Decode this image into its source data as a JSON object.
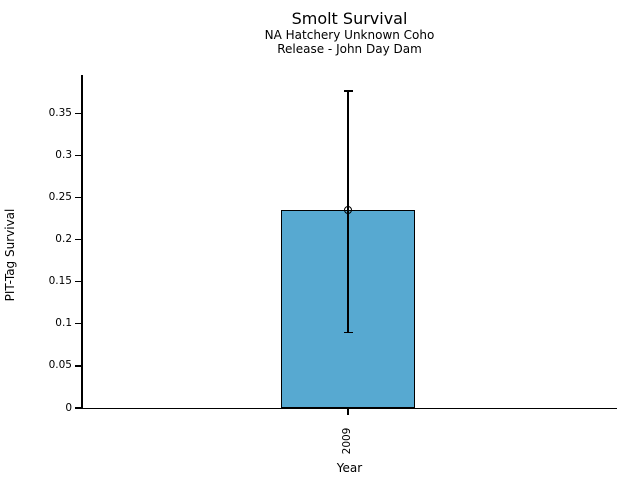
{
  "chart_data": {
    "type": "bar",
    "title": "Smolt Survival",
    "subtitle1": "NA Hatchery Unknown Coho",
    "subtitle2": "Release - John Day Dam",
    "xlabel": "Year",
    "ylabel": "PIT-Tag Survival",
    "categories": [
      "2009"
    ],
    "values": [
      0.235
    ],
    "error_bars": [
      {
        "low": 0.09,
        "high": 0.377
      }
    ],
    "marker": "open-circle",
    "ylim": [
      0,
      0.396
    ],
    "yticks": [
      0,
      0.05,
      0.1,
      0.15,
      0.2,
      0.25,
      0.3,
      0.35
    ],
    "ytick_labels": [
      "0",
      "0.05",
      "0.1",
      "0.15",
      "0.2",
      "0.25",
      "0.3",
      "0.35"
    ],
    "grid": false,
    "legend": null,
    "colors": {
      "bar_fill": "#57A9D1",
      "bar_edge": "#000000",
      "text": "#000000",
      "background": "#ffffff"
    }
  }
}
